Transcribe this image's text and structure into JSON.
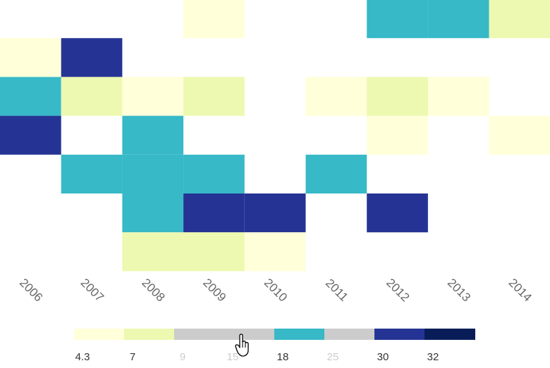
{
  "chart_data": {
    "type": "heatmap",
    "x_categories": [
      "2006",
      "2007",
      "2008",
      "2009",
      "2010",
      "2011",
      "2012",
      "2013",
      "2014"
    ],
    "cells": [
      {
        "x": "2009",
        "row": 0,
        "value": 4.3
      },
      {
        "x": "2012",
        "row": 0,
        "value": 18
      },
      {
        "x": "2013",
        "row": 0,
        "value": 18
      },
      {
        "x": "2014",
        "row": 0,
        "value": 7
      },
      {
        "x": "2006",
        "row": 1,
        "value": 4.3
      },
      {
        "x": "2007",
        "row": 1,
        "value": 30
      },
      {
        "x": "2006",
        "row": 2,
        "value": 18
      },
      {
        "x": "2007",
        "row": 2,
        "value": 7
      },
      {
        "x": "2008",
        "row": 2,
        "value": 4.3
      },
      {
        "x": "2009",
        "row": 2,
        "value": 7
      },
      {
        "x": "2011",
        "row": 2,
        "value": 4.3
      },
      {
        "x": "2012",
        "row": 2,
        "value": 7
      },
      {
        "x": "2013",
        "row": 2,
        "value": 4.3
      },
      {
        "x": "2006",
        "row": 3,
        "value": 30
      },
      {
        "x": "2008",
        "row": 3,
        "value": 18
      },
      {
        "x": "2012",
        "row": 3,
        "value": 4.3
      },
      {
        "x": "2014",
        "row": 3,
        "value": 4.3
      },
      {
        "x": "2007",
        "row": 4,
        "value": 18
      },
      {
        "x": "2008",
        "row": 4,
        "value": 18
      },
      {
        "x": "2009",
        "row": 4,
        "value": 18
      },
      {
        "x": "2011",
        "row": 4,
        "value": 18
      },
      {
        "x": "2008",
        "row": 5,
        "value": 18
      },
      {
        "x": "2009",
        "row": 5,
        "value": 30
      },
      {
        "x": "2010",
        "row": 5,
        "value": 30
      },
      {
        "x": "2012",
        "row": 5,
        "value": 30
      },
      {
        "x": "2008",
        "row": 6,
        "value": 7
      },
      {
        "x": "2009",
        "row": 6,
        "value": 7
      },
      {
        "x": "2010",
        "row": 6,
        "value": 4.3
      }
    ],
    "legend": {
      "type": "piecewise",
      "pieces": [
        {
          "label": "4.3",
          "value": 4.3,
          "color": "#ffffd9",
          "active": true
        },
        {
          "label": "7",
          "value": 7,
          "color": "#edf8b1",
          "active": true
        },
        {
          "label": "9",
          "value": 9,
          "color": "#cccccc",
          "active": false
        },
        {
          "label": "15",
          "value": 15,
          "color": "#cccccc",
          "active": false
        },
        {
          "label": "18",
          "value": 18,
          "color": "#37b9c7",
          "active": true
        },
        {
          "label": "25",
          "value": 25,
          "color": "#cccccc",
          "active": false
        },
        {
          "label": "30",
          "value": 30,
          "color": "#253494",
          "active": true
        },
        {
          "label": "32",
          "value": 32,
          "color": "#081d58",
          "active": true
        }
      ]
    }
  },
  "colors": {
    "4.3": "#ffffd9",
    "7": "#edf8b1",
    "18": "#37b9c7",
    "30": "#253494"
  }
}
